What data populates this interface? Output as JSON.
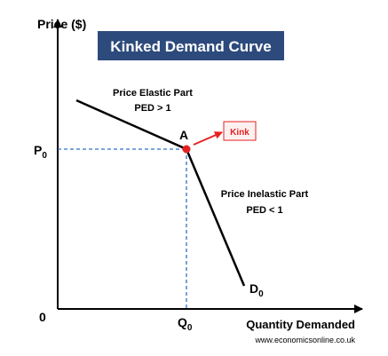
{
  "title": "Kinked Demand Curve",
  "axes": {
    "y_label": "Price ($)",
    "x_label": "Quantity Demanded",
    "origin": "0"
  },
  "price_level": {
    "main": "P",
    "sub": "0"
  },
  "quantity_level": {
    "main": "Q",
    "sub": "0"
  },
  "curve_label": {
    "main": "D",
    "sub": "0"
  },
  "point_label": "A",
  "kink_label": "Kink",
  "elastic_part": {
    "name": "Price Elastic Part",
    "ped": "PED > 1"
  },
  "inelastic_part": {
    "name": "Price Inelastic Part",
    "ped": "PED < 1"
  },
  "source": "www.economicsonline.co.uk"
}
